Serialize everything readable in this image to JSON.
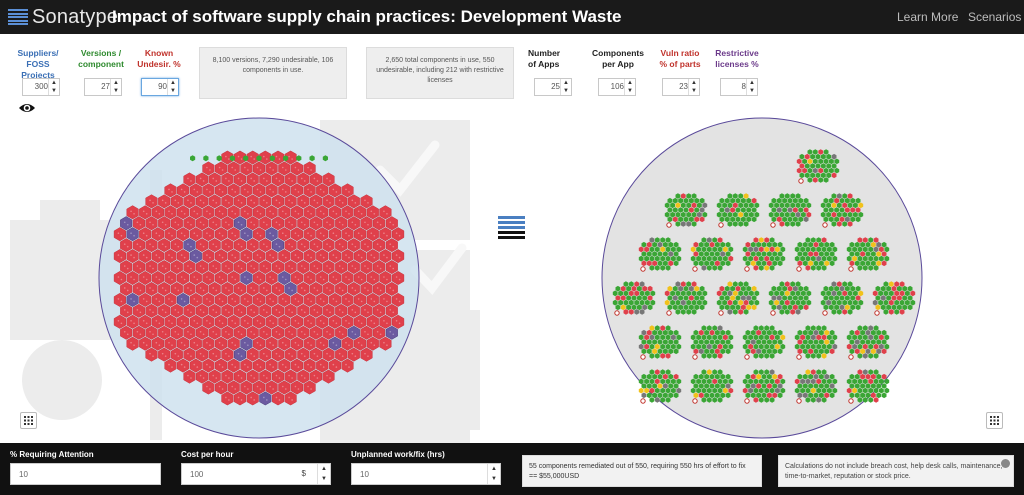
{
  "header": {
    "logo_text": "Sonatype",
    "title": "Impact of software supply chain practices: Development Waste",
    "nav": [
      "Learn More",
      "Scenarios"
    ]
  },
  "controls": {
    "suppliers": {
      "label": "Suppliers/ FOSS Projects",
      "value": "300",
      "color": "#3a6fb5"
    },
    "versions": {
      "label": "Versions / component",
      "value": "27",
      "color": "#2e8a2e"
    },
    "undesir": {
      "label": "Known Undesir. %",
      "value": "90",
      "color": "#c0322b"
    },
    "num_apps": {
      "label": "Number of Apps",
      "value": "25",
      "color": "#222222"
    },
    "comp_per_app": {
      "label": "Components per App",
      "value": "106",
      "color": "#222222"
    },
    "vuln_ratio": {
      "label": "Vuln ratio % of parts",
      "value": "23",
      "color": "#c0322b"
    },
    "restrictive": {
      "label": "Restrictive licenses %",
      "value": "8",
      "color": "#6b3a8a"
    }
  },
  "info_left": "8,100 versions, 7,290 undesirable, 106 components in use.",
  "info_right": "2,650 total components in use, 550 undesirable, including 212 with restrictive licenses",
  "icons": {
    "eye": "eye-icon",
    "grid": "grid-icon",
    "stack": "stack-icon"
  },
  "colors": {
    "red_hex": "#e0404b",
    "green_hex": "#3aa635",
    "purple_hex": "#6b5aa0",
    "yellow_hex": "#f1c21b",
    "gray_hex": "#777777",
    "circle_left": "#cfe2ef",
    "circle_right": "#e3e3e3"
  },
  "bottom": {
    "attention": {
      "label": "% Requiring Attention",
      "value": "10"
    },
    "cost": {
      "label": "Cost per hour",
      "value": "100",
      "suffix": "$"
    },
    "unplanned": {
      "label": "Unplanned work/fix (hrs)",
      "value": "10"
    },
    "result": "55 components remediated out of 550, requiring 550 hrs of effort to fix == $55,000USD",
    "note": "Calculations do not include breach cost, help desk calls, maintenance, time-to-market, reputation or stock price."
  }
}
